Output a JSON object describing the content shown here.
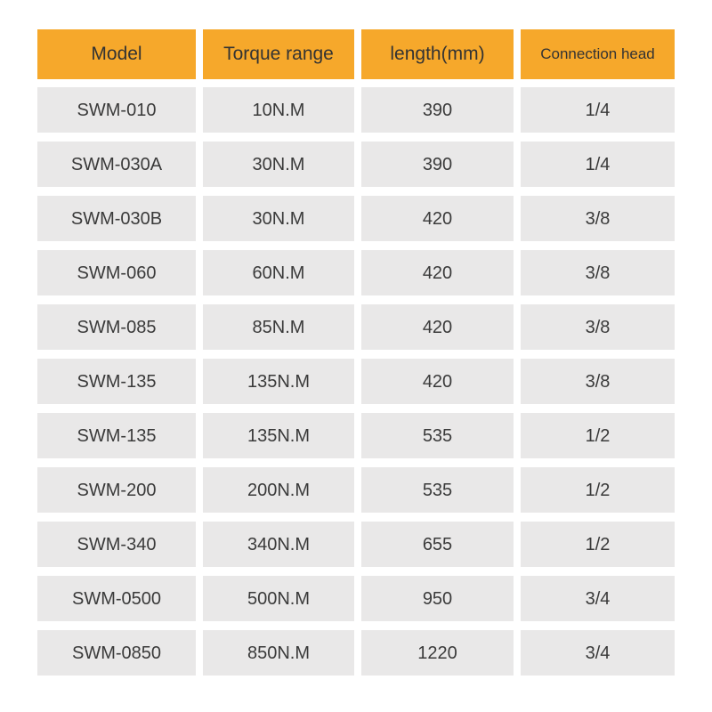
{
  "colors": {
    "header_bg": "#f6a82b",
    "row_bg": "#e9e8e8",
    "text": "#3a3a3a",
    "page_bg": "#ffffff"
  },
  "table": {
    "headers": [
      "Model",
      "Torque range",
      "length(mm)",
      "Connection head"
    ],
    "rows": [
      [
        "SWM-010",
        "10N.M",
        "390",
        "1/4"
      ],
      [
        "SWM-030A",
        "30N.M",
        "390",
        "1/4"
      ],
      [
        "SWM-030B",
        "30N.M",
        "420",
        "3/8"
      ],
      [
        "SWM-060",
        "60N.M",
        "420",
        "3/8"
      ],
      [
        "SWM-085",
        "85N.M",
        "420",
        "3/8"
      ],
      [
        "SWM-135",
        "135N.M",
        "420",
        "3/8"
      ],
      [
        "SWM-135",
        "135N.M",
        "535",
        "1/2"
      ],
      [
        "SWM-200",
        "200N.M",
        "535",
        "1/2"
      ],
      [
        "SWM-340",
        "340N.M",
        "655",
        "1/2"
      ],
      [
        "SWM-0500",
        "500N.M",
        "950",
        "3/4"
      ],
      [
        "SWM-0850",
        "850N.M",
        "1220",
        "3/4"
      ]
    ]
  },
  "chart_data": {
    "type": "table",
    "title": "",
    "columns": [
      "Model",
      "Torque range",
      "length(mm)",
      "Connection head"
    ],
    "rows": [
      [
        "SWM-010",
        "10N.M",
        "390",
        "1/4"
      ],
      [
        "SWM-030A",
        "30N.M",
        "390",
        "1/4"
      ],
      [
        "SWM-030B",
        "30N.M",
        "420",
        "3/8"
      ],
      [
        "SWM-060",
        "60N.M",
        "420",
        "3/8"
      ],
      [
        "SWM-085",
        "85N.M",
        "420",
        "3/8"
      ],
      [
        "SWM-135",
        "135N.M",
        "420",
        "3/8"
      ],
      [
        "SWM-135",
        "135N.M",
        "535",
        "1/2"
      ],
      [
        "SWM-200",
        "200N.M",
        "535",
        "1/2"
      ],
      [
        "SWM-340",
        "340N.M",
        "655",
        "1/2"
      ],
      [
        "SWM-0500",
        "500N.M",
        "950",
        "3/4"
      ],
      [
        "SWM-0850",
        "850N.M",
        "1220",
        "3/4"
      ]
    ]
  }
}
